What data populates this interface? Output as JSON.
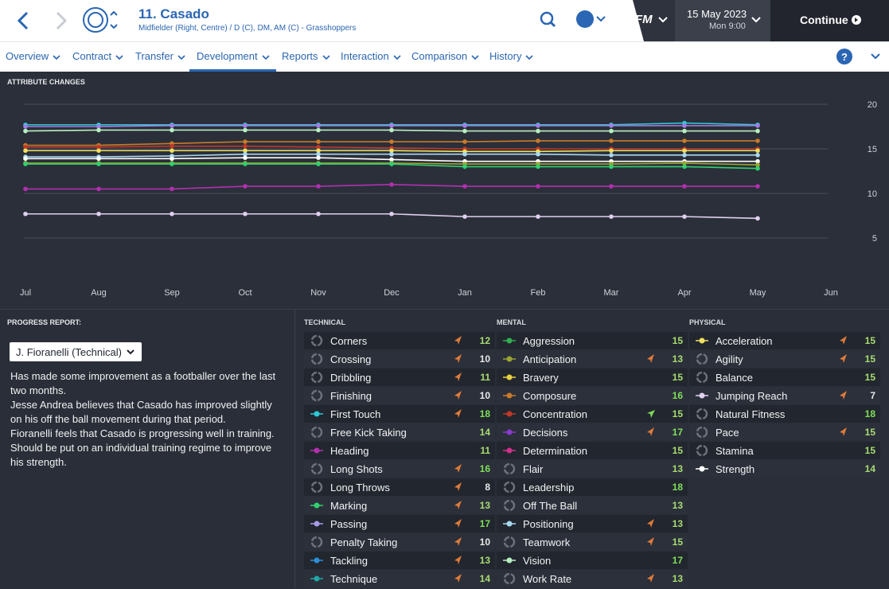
{
  "header": {
    "title": "11. Casado",
    "subtitle": "Midfielder (Right, Centre) / D (C), DM, AM (C) - Grasshoppers",
    "logo": "FM",
    "date": "15 May 2023",
    "time": "Mon 9:00",
    "continue": "Continue"
  },
  "nav": {
    "items": [
      "Overview",
      "Contract",
      "Transfer",
      "Development",
      "Reports",
      "Interaction",
      "Comparison",
      "History"
    ],
    "active": 3
  },
  "chart_data": {
    "type": "line",
    "title": "ATTRIBUTE CHANGES",
    "categories": [
      "Jul",
      "Aug",
      "Sep",
      "Oct",
      "Nov",
      "Dec",
      "Jan",
      "Feb",
      "Mar",
      "Apr",
      "May",
      "Jun"
    ],
    "ylim": [
      0,
      20
    ],
    "yticks": [
      5,
      10,
      15,
      20
    ],
    "grid": true,
    "series": [
      {
        "color": "#2fc7d6",
        "values": [
          17.7,
          17.7,
          17.7,
          17.7,
          17.7,
          17.7,
          17.7,
          17.7,
          17.7,
          17.9,
          17.7,
          null
        ]
      },
      {
        "color": "#a47be6",
        "values": [
          17.5,
          17.5,
          17.6,
          17.6,
          17.6,
          17.6,
          17.6,
          17.6,
          17.6,
          17.6,
          17.6,
          null
        ]
      },
      {
        "color": "#b7f0c0",
        "values": [
          17.0,
          17.1,
          17.1,
          17.1,
          17.1,
          17.1,
          17.0,
          17.0,
          17.0,
          17.0,
          17.0,
          null
        ]
      },
      {
        "color": "#c87a2a",
        "values": [
          15.4,
          15.4,
          15.6,
          15.8,
          15.8,
          15.8,
          15.8,
          15.9,
          15.9,
          15.9,
          15.9,
          null
        ]
      },
      {
        "color": "#c0392b",
        "values": [
          15.2,
          15.2,
          15.3,
          15.3,
          15.2,
          15.1,
          15.0,
          15.0,
          15.0,
          15.0,
          15.0,
          null
        ]
      },
      {
        "color": "#f0e060",
        "values": [
          14.8,
          14.8,
          14.8,
          14.8,
          14.8,
          14.8,
          14.7,
          14.7,
          14.8,
          14.8,
          14.8,
          null
        ]
      },
      {
        "color": "#a8d8f0",
        "values": [
          14.1,
          14.1,
          14.2,
          14.4,
          14.4,
          14.4,
          14.4,
          14.4,
          14.3,
          14.3,
          14.3,
          null
        ]
      },
      {
        "color": "#ffffff",
        "values": [
          13.9,
          13.9,
          13.9,
          14.0,
          14.0,
          13.8,
          13.6,
          13.6,
          13.6,
          13.6,
          13.6,
          null
        ]
      },
      {
        "color": "#9aa630",
        "values": [
          13.4,
          13.4,
          13.4,
          13.4,
          13.4,
          13.4,
          13.3,
          13.3,
          13.3,
          13.4,
          13.2,
          null
        ]
      },
      {
        "color": "#30d070",
        "values": [
          13.3,
          13.3,
          13.3,
          13.3,
          13.3,
          13.3,
          13.0,
          13.0,
          13.0,
          13.0,
          12.8,
          null
        ]
      },
      {
        "color": "#b030b0",
        "values": [
          10.5,
          10.5,
          10.5,
          10.8,
          10.8,
          11.0,
          10.8,
          10.8,
          10.8,
          10.8,
          10.8,
          null
        ]
      },
      {
        "color": "#e0d0f0",
        "values": [
          7.7,
          7.7,
          7.7,
          7.7,
          7.7,
          7.7,
          7.4,
          7.4,
          7.4,
          7.4,
          7.2,
          null
        ]
      }
    ]
  },
  "progress": {
    "title": "PROGRESS REPORT:",
    "coach": "J. Fioranelli (Technical)",
    "lines": [
      "Has made some improvement as a footballer over the last two months.",
      "Jesse Andrea believes that Casado has improved slightly on his off the ball movement during that period.",
      "Fioranelli feels that Casado is progressing well in training.",
      "Should be put on an individual training regime to improve his strength."
    ]
  },
  "attributes": [
    {
      "title": "TECHNICAL",
      "rows": [
        {
          "name": "Corners",
          "value": 12,
          "arrow": "#e07b39"
        },
        {
          "name": "Crossing",
          "value": 10,
          "arrow": "#e07b39"
        },
        {
          "name": "Dribbling",
          "value": 11,
          "arrow": "#e07b39"
        },
        {
          "name": "Finishing",
          "value": 10,
          "arrow": "#e07b39"
        },
        {
          "name": "First Touch",
          "value": 18,
          "color": "#2fc7d6",
          "arrow": "#e07b39"
        },
        {
          "name": "Free Kick Taking",
          "value": 14
        },
        {
          "name": "Heading",
          "value": 11,
          "color": "#b030b0"
        },
        {
          "name": "Long Shots",
          "value": 16,
          "arrow": "#e07b39"
        },
        {
          "name": "Long Throws",
          "value": 8,
          "arrow": "#e07b39"
        },
        {
          "name": "Marking",
          "value": 13,
          "color": "#30d070",
          "arrow": "#e07b39"
        },
        {
          "name": "Passing",
          "value": 17,
          "color": "#a79be6",
          "arrow": "#e07b39"
        },
        {
          "name": "Penalty Taking",
          "value": 10,
          "arrow": "#e07b39"
        },
        {
          "name": "Tackling",
          "value": 13,
          "color": "#2d8fd8",
          "arrow": "#e07b39"
        },
        {
          "name": "Technique",
          "value": 14,
          "color": "#1fa8a8",
          "arrow": "#e07b39"
        }
      ]
    },
    {
      "title": "MENTAL",
      "rows": [
        {
          "name": "Aggression",
          "value": 15,
          "color": "#30b050"
        },
        {
          "name": "Anticipation",
          "value": 13,
          "color": "#9aa630",
          "arrow": "#e07b39"
        },
        {
          "name": "Bravery",
          "value": 15,
          "color": "#e8d040"
        },
        {
          "name": "Composure",
          "value": 16,
          "color": "#c87a2a"
        },
        {
          "name": "Concentration",
          "value": 15,
          "color": "#c0392b",
          "arrow": "#7ed957"
        },
        {
          "name": "Decisions",
          "value": 17,
          "color": "#8a3ad0",
          "arrow": "#e07b39"
        },
        {
          "name": "Determination",
          "value": 15,
          "color": "#d0308a"
        },
        {
          "name": "Flair",
          "value": 13
        },
        {
          "name": "Leadership",
          "value": 18
        },
        {
          "name": "Off The Ball",
          "value": 13
        },
        {
          "name": "Positioning",
          "value": 13,
          "color": "#a8d8f0",
          "arrow": "#e07b39"
        },
        {
          "name": "Teamwork",
          "value": 15,
          "arrow": "#e07b39"
        },
        {
          "name": "Vision",
          "value": 17,
          "color": "#b7f0c0"
        },
        {
          "name": "Work Rate",
          "value": 13,
          "arrow": "#e07b39"
        }
      ]
    },
    {
      "title": "PHYSICAL",
      "rows": [
        {
          "name": "Acceleration",
          "value": 15,
          "color": "#f0e060",
          "arrow": "#e07b39"
        },
        {
          "name": "Agility",
          "value": 15,
          "arrow": "#e07b39"
        },
        {
          "name": "Balance",
          "value": 15
        },
        {
          "name": "Jumping Reach",
          "value": 7,
          "color": "#e0d0f0",
          "arrow": "#e07b39"
        },
        {
          "name": "Natural Fitness",
          "value": 18
        },
        {
          "name": "Pace",
          "value": 15,
          "arrow": "#e07b39"
        },
        {
          "name": "Stamina",
          "value": 15
        },
        {
          "name": "Strength",
          "value": 14,
          "color": "#ffffff"
        }
      ]
    }
  ]
}
